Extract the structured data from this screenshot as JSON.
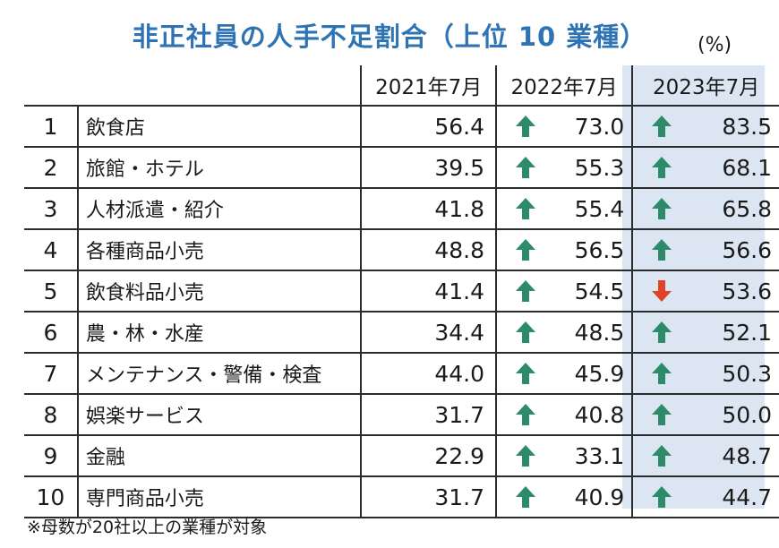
{
  "title": "非正社員の人手不足割合（上位 10 業種）",
  "unit": "(%)",
  "headers": {
    "y2021": "2021年7月",
    "y2022": "2022年7月",
    "y2023": "2023年7月"
  },
  "colors": {
    "title": "#2e74b5",
    "highlight": "#dce6f2",
    "up": "#2e8b6a",
    "down": "#e0432a"
  },
  "rows": [
    {
      "rank": "1",
      "name": "飲食店",
      "y2021": "56.4",
      "y2022": "73.0",
      "y2022_trend": "up-arrow-icon",
      "y2023": "83.5",
      "y2023_trend": "up-arrow-icon"
    },
    {
      "rank": "2",
      "name": "旅館・ホテル",
      "y2021": "39.5",
      "y2022": "55.3",
      "y2022_trend": "up-arrow-icon",
      "y2023": "68.1",
      "y2023_trend": "up-arrow-icon"
    },
    {
      "rank": "3",
      "name": "人材派遣・紹介",
      "y2021": "41.8",
      "y2022": "55.4",
      "y2022_trend": "up-arrow-icon",
      "y2023": "65.8",
      "y2023_trend": "up-arrow-icon"
    },
    {
      "rank": "4",
      "name": "各種商品小売",
      "y2021": "48.8",
      "y2022": "56.5",
      "y2022_trend": "up-arrow-icon",
      "y2023": "56.6",
      "y2023_trend": "up-arrow-icon"
    },
    {
      "rank": "5",
      "name": "飲食料品小売",
      "y2021": "41.4",
      "y2022": "54.5",
      "y2022_trend": "up-arrow-icon",
      "y2023": "53.6",
      "y2023_trend": "down-arrow-icon"
    },
    {
      "rank": "6",
      "name": "農・林・水産",
      "y2021": "34.4",
      "y2022": "48.5",
      "y2022_trend": "up-arrow-icon",
      "y2023": "52.1",
      "y2023_trend": "up-arrow-icon"
    },
    {
      "rank": "7",
      "name": "メンテナンス・警備・検査",
      "y2021": "44.0",
      "y2022": "45.9",
      "y2022_trend": "up-arrow-icon",
      "y2023": "50.3",
      "y2023_trend": "up-arrow-icon"
    },
    {
      "rank": "8",
      "name": "娯楽サービス",
      "y2021": "31.7",
      "y2022": "40.8",
      "y2022_trend": "up-arrow-icon",
      "y2023": "50.0",
      "y2023_trend": "up-arrow-icon"
    },
    {
      "rank": "9",
      "name": "金融",
      "y2021": "22.9",
      "y2022": "33.1",
      "y2022_trend": "up-arrow-icon",
      "y2023": "48.7",
      "y2023_trend": "up-arrow-icon"
    },
    {
      "rank": "10",
      "name": "専門商品小売",
      "y2021": "31.7",
      "y2022": "40.9",
      "y2022_trend": "up-arrow-icon",
      "y2023": "44.7",
      "y2023_trend": "up-arrow-icon"
    }
  ],
  "footnote": "※母数が20社以上の業種が対象"
}
